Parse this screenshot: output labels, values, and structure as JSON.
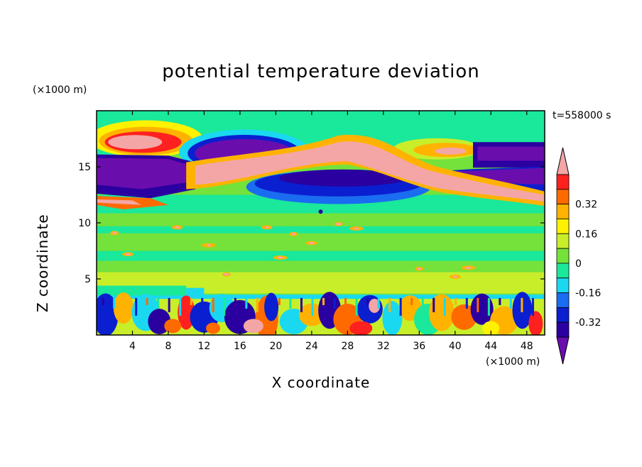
{
  "chart_data": {
    "type": "heatmap",
    "title": "potential temperature deviation",
    "xlabel": "X coordinate",
    "ylabel": "Z coordinate",
    "x_unit": "(×1000 m)",
    "y_unit": "(×1000 m)",
    "time_label": "t=558000 s",
    "xlim": [
      0,
      50
    ],
    "ylim": [
      0,
      20
    ],
    "x_ticks": [
      4,
      8,
      12,
      16,
      20,
      24,
      28,
      32,
      36,
      40,
      44,
      48
    ],
    "y_ticks": [
      5,
      10,
      15
    ],
    "colorbar": {
      "levels": [
        -0.48,
        -0.4,
        -0.32,
        -0.24,
        -0.16,
        -0.08,
        0,
        0.08,
        0.16,
        0.24,
        0.32,
        0.4,
        0.48
      ],
      "colors": [
        "#6a0dad",
        "#2a00a0",
        "#0a1fd0",
        "#1a6cf0",
        "#1ad8f0",
        "#1ae89a",
        "#74e23a",
        "#c8ee2a",
        "#fff200",
        "#ffb300",
        "#ff6a00",
        "#ff2020",
        "#f4a6a6"
      ],
      "tick_labels": [
        "0.32",
        "0.16",
        "0",
        "-0.16",
        "-0.32"
      ],
      "tick_values": [
        0.32,
        0.16,
        0,
        -0.16,
        -0.32
      ]
    },
    "field_description_levels": {
      "background": "#74e23a"
    }
  },
  "title_text": "potential temperature deviation",
  "y_unit_text": "(×1000 m)",
  "x_unit_text": "(×1000 m)",
  "time_text": "t=558000 s",
  "xlabel_text": "X coordinate",
  "ylabel_text": "Z coordinate"
}
